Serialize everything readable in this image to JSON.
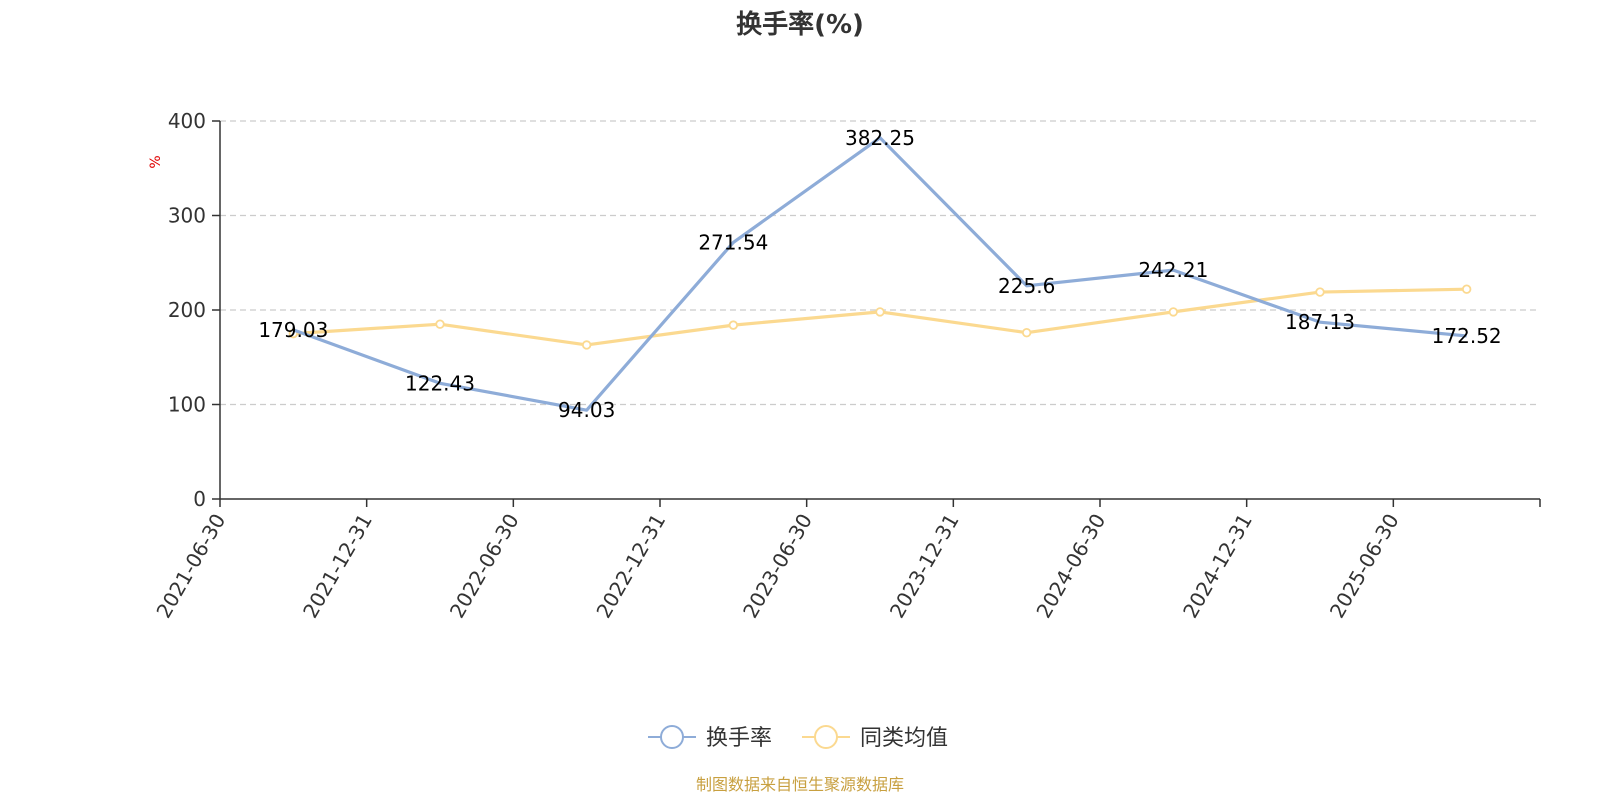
{
  "chart_data": {
    "type": "line",
    "title": "换手率(%)",
    "ylabel": "%",
    "xlabel": "",
    "ylim": [
      0,
      400
    ],
    "yticks": [
      0,
      100,
      200,
      300,
      400
    ],
    "grid": "horizontal-dashed",
    "legend_position": "bottom-center",
    "categories": [
      "2021-06-30",
      "2021-12-31",
      "2022-06-30",
      "2022-12-31",
      "2023-06-30",
      "2023-12-31",
      "2024-06-30",
      "2024-12-31",
      "2025-06-30"
    ],
    "series": [
      {
        "name": "换手率",
        "color": "#8eacd8",
        "values": [
          179.03,
          122.43,
          94.03,
          271.54,
          382.25,
          225.6,
          242.21,
          187.13,
          172.52
        ],
        "labels": [
          "179.03",
          "122.43",
          "94.03",
          "271.54",
          "382.25",
          "225.6",
          "242.21",
          "187.13",
          "172.52"
        ]
      },
      {
        "name": "同类均值",
        "color": "#fbd990",
        "values": [
          175,
          185,
          163,
          184,
          198,
          176,
          198,
          219,
          222
        ]
      }
    ]
  },
  "footer": {
    "source": "制图数据来自恒生聚源数据库"
  }
}
